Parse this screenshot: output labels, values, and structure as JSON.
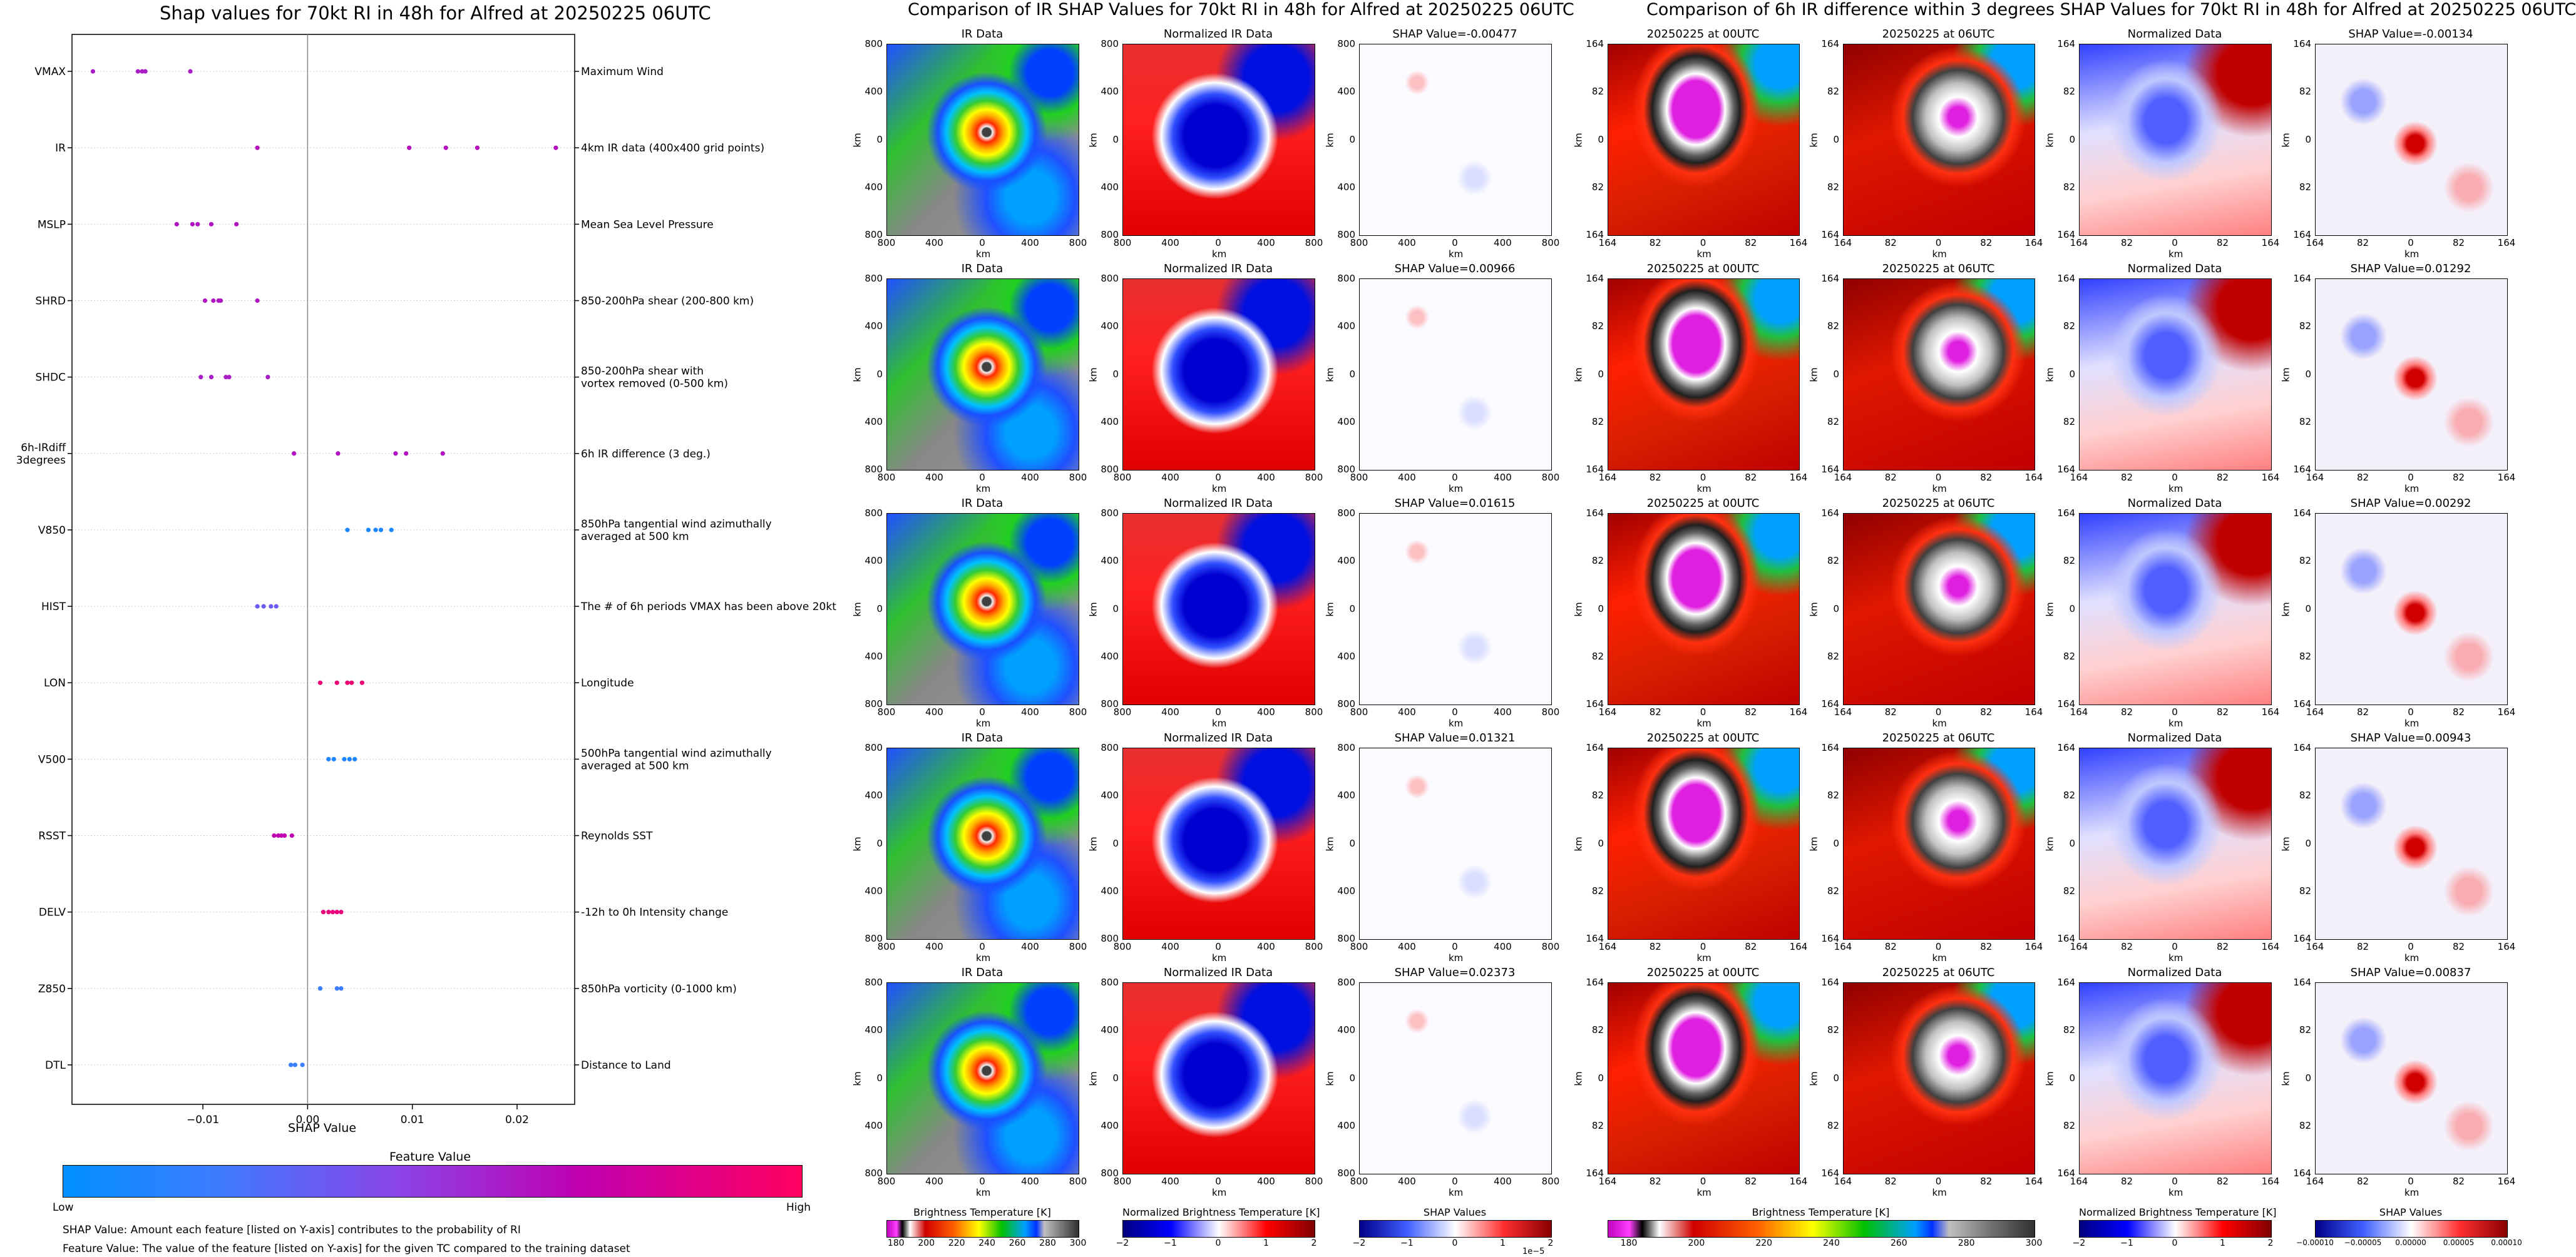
{
  "shap_panel": {
    "title": "Shap values for 70kt RI in 48h for Alfred at 20250225 06UTC",
    "xlabel": "SHAP Value",
    "feature_value_label": "Feature Value",
    "low_label": "Low",
    "high_label": "High",
    "footnote1": "SHAP Value: Amount each feature [listed on Y-axis] contributes to the probability of RI",
    "footnote2": "Feature Value: The value of the feature [listed on Y-axis] for the given TC compared to the training dataset",
    "colors": {
      "low": "#1e88e5",
      "high": "#ff0052",
      "mid": "#a000c8"
    }
  },
  "ir_section": {
    "title": "Comparison of IR SHAP Values for 70kt RI in 48h for Alfred at 20250225 06UTC",
    "col_titles": [
      "IR Data",
      "Normalized IR Data"
    ],
    "shap_titles": [
      "SHAP Value=-0.00477",
      "SHAP Value=0.00966",
      "SHAP Value=0.01615",
      "SHAP Value=0.01321",
      "SHAP Value=0.02373"
    ],
    "ticks": [
      "800",
      "400",
      "0",
      "400",
      "800"
    ],
    "axis_label": "km",
    "cbar_labels": [
      "Brightness Temperature [K]",
      "Normalized Brightness Temperature [K]",
      "SHAP Values"
    ],
    "cbar1_ticks": [
      "180",
      "200",
      "220",
      "240",
      "260",
      "280",
      "300"
    ],
    "cbar2_ticks": [
      "−2",
      "−1",
      "0",
      "1",
      "2"
    ],
    "cbar3_ticks": [
      "−2",
      "−1",
      "0",
      "1",
      "2"
    ],
    "cbar3_exp": "1e−5"
  },
  "diff_section": {
    "title": "Comparison of 6h IR difference within 3 degrees SHAP Values for 70kt RI in 48h for Alfred at 20250225 06UTC",
    "col_titles": [
      "20250225 at 00UTC",
      "20250225 at 06UTC",
      "Normalized Data"
    ],
    "shap_titles": [
      "SHAP Value=-0.00134",
      "SHAP Value=0.01292",
      "SHAP Value=0.00292",
      "SHAP Value=0.00943",
      "SHAP Value=0.00837"
    ],
    "ticks": [
      "164",
      "82",
      "0",
      "82",
      "164"
    ],
    "axis_label": "km",
    "cbar_labels": [
      "Brightness Temperature [K]",
      "Normalized Brightness Temperature [K]",
      "SHAP Values"
    ],
    "cbar1_ticks": [
      "180",
      "200",
      "220",
      "240",
      "260",
      "280",
      "300"
    ],
    "cbar2_ticks": [
      "−2",
      "−1",
      "0",
      "1",
      "2"
    ],
    "cbar3_ticks": [
      "−0.00010",
      "−0.00005",
      "0.00000",
      "0.00005",
      "0.00010"
    ]
  },
  "chart_data": {
    "type": "scatter",
    "title": "Shap values for 70kt RI in 48h for Alfred at 20250225 06UTC",
    "xlabel": "SHAP Value",
    "ylabel": "",
    "xlim": [
      -0.0225,
      0.0255
    ],
    "xticks": [
      "−0.01",
      "0.00",
      "0.01",
      "0.02"
    ],
    "xtick_values": [
      -0.01,
      0.0,
      0.01,
      0.02
    ],
    "series": [
      {
        "feature": "VMAX",
        "description": "Maximum Wind",
        "shap": [
          -0.0205,
          -0.0162,
          -0.0158,
          -0.0155,
          -0.0112
        ],
        "feature_value": 0.6
      },
      {
        "feature": "IR",
        "description": "4km IR data (400x400 grid points)",
        "shap": [
          -0.0048,
          0.0097,
          0.0132,
          0.0162,
          0.0237
        ],
        "feature_value": 0.65
      },
      {
        "feature": "MSLP",
        "description": "Mean Sea Level Pressure",
        "shap": [
          -0.0125,
          -0.011,
          -0.0105,
          -0.0092,
          -0.0068
        ],
        "feature_value": 0.62
      },
      {
        "feature": "SHRD",
        "description": "850-200hPa shear (200-800 km)",
        "shap": [
          -0.0098,
          -0.009,
          -0.0085,
          -0.0083,
          -0.0048
        ],
        "feature_value": 0.62
      },
      {
        "feature": "SHDC",
        "description": "850-200hPa shear with\nvortex removed (0-500 km)",
        "shap": [
          -0.0102,
          -0.0092,
          -0.0078,
          -0.0075,
          -0.0038
        ],
        "feature_value": 0.6
      },
      {
        "feature": "6h-IRdiff\n3degrees",
        "description": "6h IR difference (3 deg.)",
        "shap": [
          -0.0013,
          0.0029,
          0.0084,
          0.0094,
          0.0129
        ],
        "feature_value": 0.63
      },
      {
        "feature": "V850",
        "description": "850hPa tangential wind azimuthally\naveraged at 500 km",
        "shap": [
          0.0038,
          0.0058,
          0.0065,
          0.007,
          0.008
        ],
        "feature_value": 0.1
      },
      {
        "feature": "HIST",
        "description": "The # of 6h periods VMAX has been above 20kt",
        "shap": [
          -0.0048,
          -0.0042,
          -0.0035,
          -0.003
        ],
        "feature_value": 0.35
      },
      {
        "feature": "LON",
        "description": "Longitude",
        "shap": [
          0.0012,
          0.0028,
          0.0038,
          0.0042,
          0.0052
        ],
        "feature_value": 0.92
      },
      {
        "feature": "V500",
        "description": "500hPa tangential wind azimuthally\naveraged at 500 km",
        "shap": [
          0.002,
          0.0025,
          0.0035,
          0.004,
          0.0045
        ],
        "feature_value": 0.1
      },
      {
        "feature": "RSST",
        "description": "Reynolds SST",
        "shap": [
          -0.0032,
          -0.0028,
          -0.0025,
          -0.0022,
          -0.0015
        ],
        "feature_value": 0.7
      },
      {
        "feature": "DELV",
        "description": "-12h to 0h Intensity change",
        "shap": [
          0.0015,
          0.002,
          0.0024,
          0.0028,
          0.0032
        ],
        "feature_value": 0.9
      },
      {
        "feature": "Z850",
        "description": "850hPa vorticity (0-1000 km)",
        "shap": [
          0.0012,
          0.0028,
          0.0032
        ],
        "feature_value": 0.2
      },
      {
        "feature": "DTL",
        "description": "Distance to Land",
        "shap": [
          -0.0016,
          -0.0012,
          -0.0005
        ],
        "feature_value": 0.2
      }
    ],
    "colorbar": {
      "label": "Feature Value",
      "low": "Low",
      "high": "High"
    }
  }
}
